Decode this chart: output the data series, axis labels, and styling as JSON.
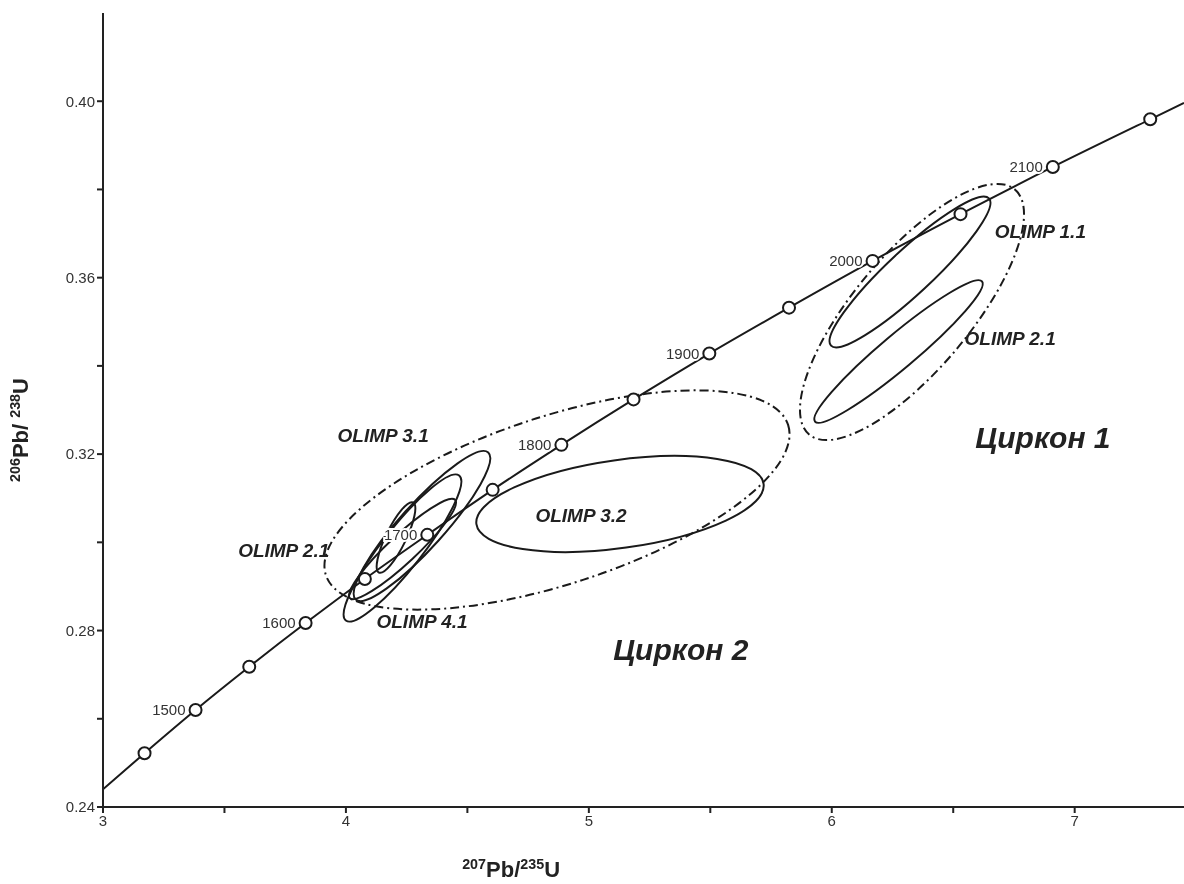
{
  "chart_data": {
    "type": "line",
    "xlabel": "$^{207}$Pb/$^{235}$U",
    "ylabel": "$^{206}$Pb/ $^{238}$U",
    "xlim": [
      3,
      7.45
    ],
    "xticks": [
      3,
      {
        "value": 3.5,
        "label": null
      },
      4,
      {
        "value": 4.5,
        "label": null
      },
      5,
      {
        "value": 5.5,
        "label": null
      },
      6,
      {
        "value": 6.5,
        "label": null
      },
      7
    ],
    "ylim": [
      0.24,
      0.42
    ],
    "yticks": [
      {
        "value": 0.24,
        "label": "0.24"
      },
      {
        "value": 0.26,
        "label": null
      },
      {
        "value": 0.28,
        "label": "0.28"
      },
      {
        "value": 0.3,
        "label": null
      },
      {
        "value": 0.32,
        "label": "0.32"
      },
      {
        "value": 0.34,
        "label": null
      },
      {
        "value": 0.36,
        "label": "0.36"
      },
      {
        "value": 0.38,
        "label": null
      },
      {
        "value": 0.4,
        "label": "0.40"
      }
    ],
    "grid": false,
    "series": [
      {
        "color": "#1a1a1a",
        "marker": "none",
        "line_style": "solid",
        "x": [
          3,
          3.171,
          3.381,
          3.602,
          3.834,
          4.078,
          4.335,
          4.604,
          4.887,
          5.184,
          5.496,
          5.824,
          6.168,
          6.53,
          6.91,
          7.311,
          7.45
        ],
        "values": [
          0.244,
          0.2522,
          0.262,
          0.2718,
          0.2817,
          0.2917,
          0.3017,
          0.3119,
          0.3221,
          0.3324,
          0.3428,
          0.3532,
          0.3638,
          0.3744,
          0.3851,
          0.3959,
          0.3996
        ]
      },
      {
        "type": "scatter",
        "color": "#1a1a1a",
        "marker": "circle",
        "x": [
          3.171,
          3.381,
          3.602,
          3.834,
          4.078,
          4.335,
          4.604,
          4.887,
          5.184,
          5.496,
          5.824,
          6.168,
          6.53,
          6.91,
          7.311
        ],
        "values": [
          0.2522,
          0.262,
          0.2718,
          0.2817,
          0.2917,
          0.3017,
          0.3119,
          0.3221,
          0.3324,
          0.3428,
          0.3532,
          0.3638,
          0.3744,
          0.3851,
          0.3959
        ]
      }
    ],
    "annotations": [
      {
        "text": "1500",
        "x": 3.381,
        "y": 0.262
      },
      {
        "text": "1600",
        "x": 3.834,
        "y": 0.2817
      },
      {
        "text": "1700",
        "x": 4.335,
        "y": 0.3017
      },
      {
        "text": "1800",
        "x": 4.887,
        "y": 0.3221
      },
      {
        "text": "1900",
        "x": 5.496,
        "y": 0.3428
      },
      {
        "text": "2000",
        "x": 6.168,
        "y": 0.3638
      },
      {
        "text": "2100",
        "x": 6.91,
        "y": 0.3851
      },
      "OLIMP 1.1",
      "OLIMP 2.1",
      "OLIMP 3.1",
      "OLIMP 2.1",
      "OLIMP 4.1",
      "OLIMP 3.2",
      "Циркон 1",
      "Циркон 2"
    ]
  }
}
